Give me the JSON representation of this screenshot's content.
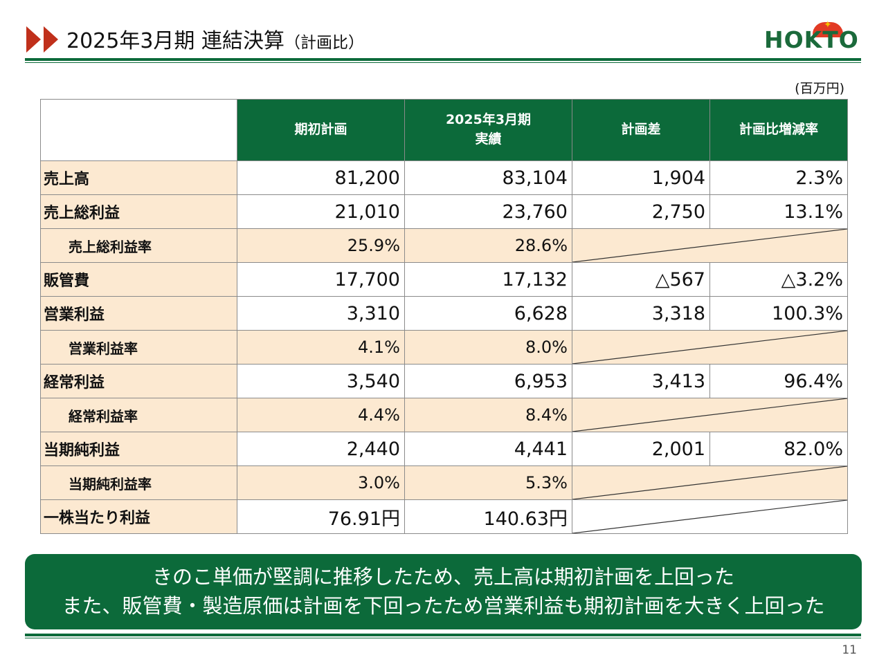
{
  "header": {
    "title_main": "2025年3月期 連結決算",
    "title_sub": "（計画比）",
    "logo_text": "HOKTO"
  },
  "unit": "(百万円)",
  "table": {
    "columns": [
      "期初計画",
      "2025年3月期\n実績",
      "計画差",
      "計画比増減率"
    ],
    "col1_line1": "2025年3月期",
    "col1_line2": "実績",
    "rows": [
      {
        "label": "売上高",
        "plan": "81,200",
        "actual": "83,104",
        "diff": "1,904",
        "rate": "2.3%"
      },
      {
        "label": "売上総利益",
        "plan": "21,010",
        "actual": "23,760",
        "diff": "2,750",
        "rate": "13.1%"
      },
      {
        "label": "売上総利益率",
        "plan": "25.9%",
        "actual": "28.6%"
      },
      {
        "label": "販管費",
        "plan": "17,700",
        "actual": "17,132",
        "diff": "△567",
        "rate": "△3.2%"
      },
      {
        "label": "営業利益",
        "plan": "3,310",
        "actual": "6,628",
        "diff": "3,318",
        "rate": "100.3%"
      },
      {
        "label": "営業利益率",
        "plan": "4.1%",
        "actual": "8.0%"
      },
      {
        "label": "経常利益",
        "plan": "3,540",
        "actual": "6,953",
        "diff": "3,413",
        "rate": "96.4%"
      },
      {
        "label": "経常利益率",
        "plan": "4.4%",
        "actual": "8.4%"
      },
      {
        "label": "当期純利益",
        "plan": "2,440",
        "actual": "4,441",
        "diff": "2,001",
        "rate": "82.0%"
      },
      {
        "label": "当期純利益率",
        "plan": "3.0%",
        "actual": "5.3%"
      },
      {
        "label": "一株当たり利益",
        "plan": "76.91円",
        "actual": "140.63円"
      }
    ]
  },
  "note": {
    "line1": "きのこ単価が堅調に推移したため、売上高は期初計画を上回った",
    "line2": "また、販管費・製造原価は計画を下回ったため営業利益も期初計画を大きく上回った"
  },
  "page_number": "11",
  "colors": {
    "brand_green": "#0c6a3a",
    "arrow_red": "#c0301b",
    "label_bg": "#fce9d1"
  }
}
